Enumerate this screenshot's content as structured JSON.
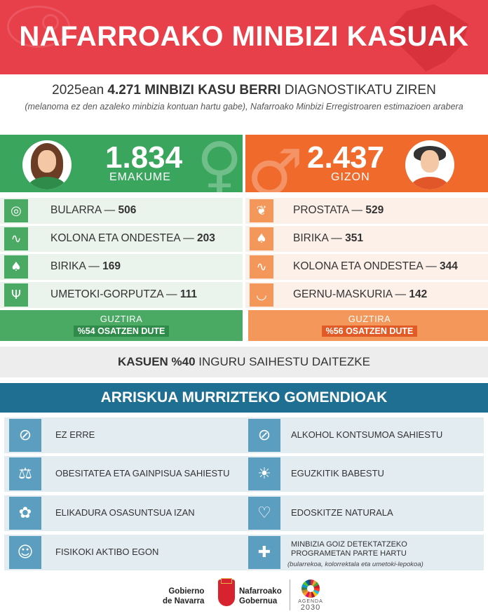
{
  "header": {
    "title": "NAFARROAKO MINBIZI KASUAK"
  },
  "intro": {
    "line1_prefix": "2025ean ",
    "line1_bold": "4.271 MINBIZI KASU BERRI",
    "line1_suffix": " DIAGNOSTIKATU ZIREN",
    "line2": "(melanoma ez den azaleko minbizia kontuan hartu gabe), Nafarroako Minbizi Erregistroaren estimazioen arabera"
  },
  "women": {
    "count": "1.834",
    "label": "EMAKUME",
    "symbol": "♀",
    "items": [
      {
        "icon": "breast-icon",
        "glyph": "◎",
        "name": "BULARRA — ",
        "value": "506"
      },
      {
        "icon": "colon-icon",
        "glyph": "∿",
        "name": "KOLONA ETA ONDESTEA — ",
        "value": "203"
      },
      {
        "icon": "lungs-icon",
        "glyph": "♠",
        "name": "BIRIKA — ",
        "value": "169"
      },
      {
        "icon": "uterus-icon",
        "glyph": "Ψ",
        "name": "UMETOKI-GORPUTZA — ",
        "value": "111"
      }
    ],
    "total_label": "GUZTIRA",
    "total_value": "%54 OSATZEN DUTE",
    "colors": {
      "main": "#3aa55c",
      "light": "#eaf3ec"
    }
  },
  "men": {
    "count": "2.437",
    "label": "GIZON",
    "symbol": "♂",
    "items": [
      {
        "icon": "prostate-icon",
        "glyph": "❦",
        "name": "PROSTATA — ",
        "value": "529"
      },
      {
        "icon": "lungs-icon",
        "glyph": "♠",
        "name": "BIRIKA — ",
        "value": "351"
      },
      {
        "icon": "colon-icon",
        "glyph": "∿",
        "name": "KOLONA ETA ONDESTEA — ",
        "value": "344"
      },
      {
        "icon": "bladder-icon",
        "glyph": "◡",
        "name": "GERNU-MASKURIA — ",
        "value": "142"
      }
    ],
    "total_label": "GUZTIRA",
    "total_value": "%56 OSATZEN DUTE",
    "colors": {
      "main": "#f06a2c",
      "light": "#fdf0e8"
    }
  },
  "preventable": {
    "bold": "KASUEN %40",
    "rest": " INGURU SAIHESTU DAITEZKE"
  },
  "recommendations": {
    "title": "ARRISKUA MURRIZTEKO GOMENDIOAK",
    "items": [
      {
        "icon": "no-smoking-icon",
        "glyph": "⊘",
        "label": "EZ ERRE"
      },
      {
        "icon": "no-alcohol-icon",
        "glyph": "⊘",
        "label": "ALKOHOL KONTSUMOA SAHIESTU"
      },
      {
        "icon": "scale-icon",
        "glyph": "⚖",
        "label": "OBESITATEA ETA GAINPISUA SAHIESTU"
      },
      {
        "icon": "sun-protection-icon",
        "glyph": "☀",
        "label": "EGUZKITIK BABESTU"
      },
      {
        "icon": "healthy-food-icon",
        "glyph": "✿",
        "label": "ELIKADURA OSASUNTSUA IZAN"
      },
      {
        "icon": "breastfeeding-icon",
        "glyph": "♡",
        "label": "EDOSKITZE NATURALA"
      },
      {
        "icon": "exercise-icon",
        "glyph": "☺",
        "label": "FISIKOKI AKTIBO EGON"
      },
      {
        "icon": "screening-icon",
        "glyph": "✚",
        "label": "MINBIZIA GOIZ DETEKTATZEKO PROGRAMETAN PARTE HARTU",
        "sub": "(bularrekoa, kolorrektala eta umetoki-lepokoa)"
      }
    ]
  },
  "footer": {
    "gob_es_1": "Gobierno",
    "gob_es_2": "de Navarra",
    "gob_eu_1": "Nafarroako",
    "gob_eu_2": "Gobernua",
    "agenda_1": "AGENDA",
    "agenda_2": "2030"
  }
}
